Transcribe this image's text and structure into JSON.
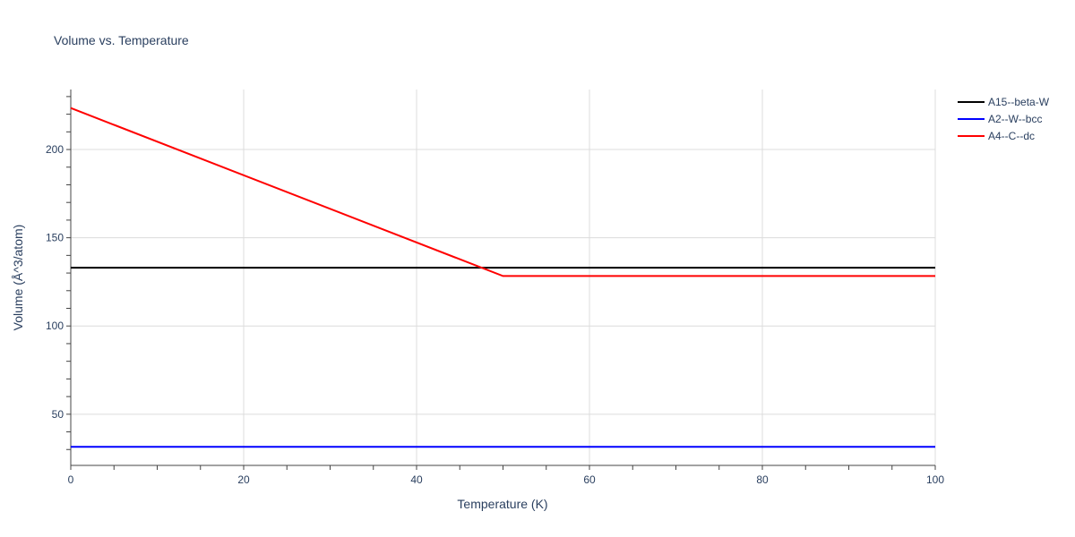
{
  "chart_data": {
    "type": "line",
    "title": "Volume vs. Temperature",
    "xlabel": "Temperature (K)",
    "ylabel": "Volume (Å^3/atom)",
    "xlim": [
      0,
      100
    ],
    "ylim": [
      21,
      234
    ],
    "x_ticks": [
      0,
      20,
      40,
      60,
      80,
      100
    ],
    "y_ticks": [
      50,
      100,
      150,
      200
    ],
    "grid": true,
    "legend_position": "top-right",
    "series": [
      {
        "name": "A15--beta-W",
        "color": "#000000",
        "x": [
          0,
          100
        ],
        "y": [
          133,
          133
        ]
      },
      {
        "name": "A2--W--bcc",
        "color": "#0000ff",
        "x": [
          0,
          100
        ],
        "y": [
          31.5,
          31.5
        ]
      },
      {
        "name": "A4--C--dc",
        "color": "#ff0000",
        "x": [
          0,
          50,
          100
        ],
        "y": [
          223.5,
          128.3,
          128.3
        ]
      }
    ]
  }
}
